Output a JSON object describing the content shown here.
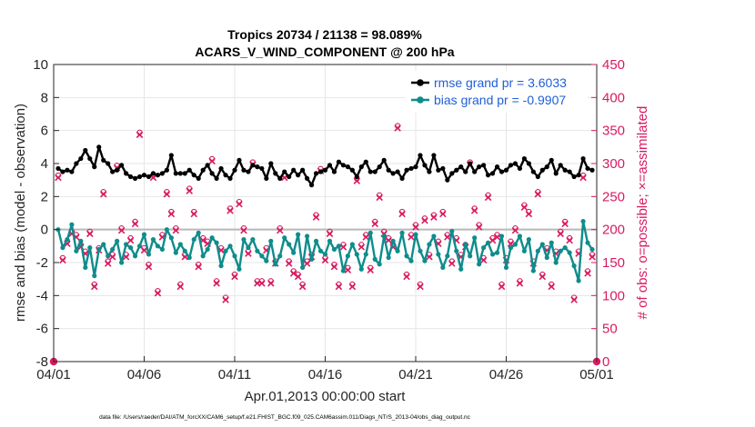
{
  "chart_data": {
    "type": "line",
    "title": "Tropics 20734 / 21138 = 98.089%",
    "subtitle": "ACARS_V_WIND_COMPONENT @ 200 hPa",
    "xlabel": "Apr.01,2013 00:00:00 start",
    "ylabel": "rmse and bias (model - observation)",
    "ylabel_right": "# of obs: o=possible; ×=assimilated",
    "x_tick_labels": [
      "04/01",
      "04/06",
      "04/11",
      "04/16",
      "04/21",
      "04/26",
      "05/01"
    ],
    "x_tick_days": [
      0,
      5,
      10,
      15,
      20,
      25,
      30
    ],
    "xlim": [
      0,
      30
    ],
    "ylim": [
      -8,
      10
    ],
    "y_ticks": [
      -8,
      -6,
      -4,
      -2,
      0,
      2,
      4,
      6,
      8,
      10
    ],
    "ylim_right": [
      0,
      450
    ],
    "y_ticks_right": [
      0,
      50,
      100,
      150,
      200,
      250,
      300,
      350,
      400,
      450
    ],
    "grid": true,
    "legend_position": "top-right",
    "series": [
      {
        "name": "rmse grand pr = 3.6033",
        "color": "#000000",
        "marker": "filled-circle",
        "axis": "left",
        "t": [
          0.25,
          0.5,
          0.75,
          1.0,
          1.25,
          1.5,
          1.75,
          2.0,
          2.25,
          2.5,
          2.75,
          3.0,
          3.25,
          3.5,
          3.75,
          4.0,
          4.25,
          4.5,
          4.75,
          5.0,
          5.25,
          5.5,
          5.75,
          6.0,
          6.25,
          6.5,
          6.75,
          7.0,
          7.25,
          7.5,
          7.75,
          8.0,
          8.25,
          8.5,
          8.75,
          9.0,
          9.25,
          9.5,
          9.75,
          10.0,
          10.25,
          10.5,
          10.75,
          11.0,
          11.25,
          11.5,
          11.75,
          12.0,
          12.25,
          12.5,
          12.75,
          13.0,
          13.25,
          13.5,
          13.75,
          14.0,
          14.25,
          14.5,
          14.75,
          15.0,
          15.25,
          15.5,
          15.75,
          16.0,
          16.25,
          16.5,
          16.75,
          17.0,
          17.25,
          17.5,
          17.75,
          18.0,
          18.25,
          18.5,
          18.75,
          19.0,
          19.25,
          19.5,
          19.75,
          20.0,
          20.25,
          20.5,
          20.75,
          21.0,
          21.25,
          21.5,
          21.75,
          22.0,
          22.25,
          22.5,
          22.75,
          23.0,
          23.25,
          23.5,
          23.75,
          24.0,
          24.25,
          24.5,
          24.75,
          25.0,
          25.25,
          25.5,
          25.75,
          26.0,
          26.25,
          26.5,
          26.75,
          27.0,
          27.25,
          27.5,
          27.75,
          28.0,
          28.25,
          28.5,
          28.75,
          29.0,
          29.25,
          29.5,
          29.75
        ],
        "values": [
          3.7,
          3.5,
          3.6,
          3.5,
          4.0,
          4.3,
          4.8,
          4.3,
          3.8,
          5.0,
          4.2,
          4.0,
          3.5,
          3.6,
          3.9,
          3.4,
          3.2,
          3.1,
          3.2,
          3.3,
          3.2,
          3.4,
          3.3,
          3.4,
          3.6,
          4.5,
          3.4,
          3.4,
          3.4,
          3.6,
          3.3,
          3.1,
          3.6,
          3.9,
          3.4,
          3.1,
          3.7,
          3.3,
          3.1,
          3.6,
          4.2,
          3.6,
          3.5,
          3.9,
          3.8,
          3.7,
          3.1,
          4.0,
          3.4,
          3.1,
          3.5,
          3.2,
          3.6,
          3.3,
          3.6,
          3.1,
          2.7,
          3.4,
          3.5,
          3.6,
          3.9,
          3.5,
          4.1,
          3.9,
          3.8,
          3.6,
          3.2,
          3.8,
          4.1,
          3.5,
          3.5,
          3.8,
          4.2,
          3.6,
          3.4,
          3.5,
          3.1,
          3.6,
          3.7,
          3.8,
          4.5,
          3.9,
          3.5,
          4.5,
          3.6,
          3.7,
          3.0,
          3.4,
          3.6,
          3.8,
          3.5,
          4.0,
          3.5,
          3.8,
          3.9,
          3.3,
          3.4,
          3.8,
          3.5,
          3.6,
          3.9,
          4.0,
          3.7,
          4.3,
          4.0,
          3.5,
          3.2,
          3.6,
          3.8,
          4.2,
          3.4,
          3.9,
          3.6,
          3.5,
          3.2,
          3.3,
          4.3,
          3.7,
          3.6
        ]
      },
      {
        "name": "bias grand pr = -0.9907",
        "color": "#0f8c8c",
        "marker": "filled-circle",
        "axis": "left",
        "t": [
          0.25,
          0.5,
          0.75,
          1.0,
          1.25,
          1.5,
          1.75,
          2.0,
          2.25,
          2.5,
          2.75,
          3.0,
          3.25,
          3.5,
          3.75,
          4.0,
          4.25,
          4.5,
          4.75,
          5.0,
          5.25,
          5.5,
          5.75,
          6.0,
          6.25,
          6.5,
          6.75,
          7.0,
          7.25,
          7.5,
          7.75,
          8.0,
          8.25,
          8.5,
          8.75,
          9.0,
          9.25,
          9.5,
          9.75,
          10.0,
          10.25,
          10.5,
          10.75,
          11.0,
          11.25,
          11.5,
          11.75,
          12.0,
          12.25,
          12.5,
          12.75,
          13.0,
          13.25,
          13.5,
          13.75,
          14.0,
          14.25,
          14.5,
          14.75,
          15.0,
          15.25,
          15.5,
          15.75,
          16.0,
          16.25,
          16.5,
          16.75,
          17.0,
          17.25,
          17.5,
          17.75,
          18.0,
          18.25,
          18.5,
          18.75,
          19.0,
          19.25,
          19.5,
          19.75,
          20.0,
          20.25,
          20.5,
          20.75,
          21.0,
          21.25,
          21.5,
          21.75,
          22.0,
          22.25,
          22.5,
          22.75,
          23.0,
          23.25,
          23.5,
          23.75,
          24.0,
          24.25,
          24.5,
          24.75,
          25.0,
          25.25,
          25.5,
          25.75,
          26.0,
          26.25,
          26.5,
          26.75,
          27.0,
          27.25,
          27.5,
          27.75,
          28.0,
          28.25,
          28.5,
          28.75,
          29.0,
          29.25,
          29.5,
          29.75
        ],
        "values": [
          0.0,
          -1.1,
          -0.6,
          0.3,
          -1.3,
          -0.7,
          -2.3,
          -1.1,
          -2.8,
          -1.2,
          -0.9,
          -1.6,
          -1.2,
          -0.7,
          -2.0,
          -0.9,
          -1.1,
          -1.6,
          -1.0,
          -0.3,
          -1.5,
          -0.6,
          -1.0,
          -1.2,
          0.0,
          -0.5,
          -1.4,
          -0.9,
          -1.3,
          -1.7,
          -0.6,
          -0.2,
          -1.6,
          -1.2,
          -0.5,
          -0.8,
          -2.2,
          -1.3,
          -1.0,
          -1.6,
          -2.4,
          -0.6,
          -1.1,
          -0.6,
          -1.3,
          -1.6,
          -1.9,
          -0.7,
          -2.1,
          -1.6,
          -0.5,
          -0.9,
          -1.4,
          -0.3,
          -2.3,
          -0.4,
          -1.8,
          -0.7,
          -1.3,
          -1.5,
          -0.7,
          -1.2,
          -1.0,
          -2.5,
          -1.6,
          -0.9,
          -1.5,
          -2.4,
          -1.5,
          -0.2,
          -1.8,
          -2.1,
          -0.4,
          -1.7,
          -0.7,
          -1.3,
          -0.2,
          -1.6,
          -1.9,
          -0.3,
          -1.3,
          -1.9,
          -0.9,
          -0.4,
          -1.5,
          -2.3,
          -1.6,
          -0.1,
          -1.3,
          -2.4,
          -0.9,
          -1.6,
          -0.5,
          -2.1,
          -1.1,
          -0.8,
          -1.5,
          -1.4,
          -0.4,
          -2.3,
          -1.1,
          -0.9,
          -0.4,
          -1.3,
          -0.6,
          -2.5,
          -1.3,
          -0.9,
          -1.7,
          -0.8,
          -2.0,
          -1.3,
          -1.1,
          -1.4,
          -2.2,
          -3.1,
          0.5,
          -0.8,
          -1.2
        ]
      },
      {
        "name": "# of obs assimilated",
        "color": "#d81b60",
        "marker": "x",
        "axis": "right",
        "t": [
          0.0,
          0.25,
          0.5,
          0.75,
          1.0,
          1.25,
          1.5,
          1.75,
          2.0,
          2.25,
          2.5,
          2.75,
          3.0,
          3.25,
          3.5,
          3.75,
          4.0,
          4.25,
          4.5,
          4.75,
          5.0,
          5.25,
          5.5,
          5.75,
          6.0,
          6.25,
          6.5,
          6.75,
          7.0,
          7.25,
          7.5,
          7.75,
          8.0,
          8.25,
          8.5,
          8.75,
          9.0,
          9.25,
          9.5,
          9.75,
          10.0,
          10.25,
          10.5,
          10.75,
          11.0,
          11.25,
          11.5,
          11.75,
          12.0,
          12.25,
          12.5,
          12.75,
          13.0,
          13.25,
          13.5,
          13.75,
          14.0,
          14.25,
          14.5,
          14.75,
          15.0,
          15.25,
          15.5,
          15.75,
          16.0,
          16.25,
          16.5,
          16.75,
          17.0,
          17.25,
          17.5,
          17.75,
          18.0,
          18.25,
          18.5,
          18.75,
          19.0,
          19.25,
          19.5,
          19.75,
          20.0,
          20.25,
          20.5,
          20.75,
          21.0,
          21.25,
          21.5,
          21.75,
          22.0,
          22.25,
          22.5,
          22.75,
          23.0,
          23.25,
          23.5,
          23.75,
          24.0,
          24.25,
          24.5,
          24.75,
          25.0,
          25.25,
          25.5,
          25.75,
          26.0,
          26.25,
          26.5,
          26.75,
          27.0,
          27.25,
          27.5,
          27.75,
          28.0,
          28.25,
          28.5,
          28.75,
          29.0,
          29.25,
          29.5,
          29.75,
          30.0
        ],
        "values": [
          0,
          280,
          155,
          180,
          195,
          190,
          175,
          165,
          195,
          115,
          170,
          255,
          150,
          160,
          295,
          200,
          160,
          185,
          210,
          345,
          170,
          145,
          280,
          105,
          190,
          255,
          225,
          200,
          115,
          160,
          260,
          225,
          145,
          185,
          180,
          305,
          120,
          170,
          95,
          230,
          130,
          240,
          200,
          165,
          300,
          120,
          120,
          170,
          120,
          150,
          200,
          280,
          150,
          135,
          130,
          115,
          150,
          160,
          220,
          290,
          155,
          195,
          145,
          115,
          175,
          140,
          115,
          275,
          175,
          190,
          140,
          210,
          250,
          195,
          185,
          175,
          355,
          225,
          130,
          190,
          205,
          115,
          215,
          160,
          220,
          180,
          225,
          190,
          150,
          185,
          160,
          175,
          300,
          230,
          205,
          155,
          250,
          185,
          190,
          115,
          155,
          180,
          200,
          120,
          235,
          225,
          150,
          255,
          130,
          170,
          115,
          165,
          195,
          210,
          185,
          95,
          165,
          280,
          135,
          160,
          0
        ]
      }
    ]
  },
  "footnote": "data file: /Users/raeder/DAI/ATM_forcXX/CAM6_setup/f.e21.FHIST_BGC.f09_025.CAM6assim.011/Diags_NTrS_2013-04/obs_diag_output.nc"
}
